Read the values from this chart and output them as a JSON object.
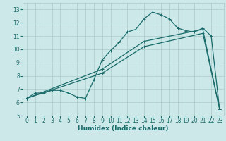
{
  "bg_color": "#cce8e8",
  "grid_color": "#aacccc",
  "line_color": "#1a6b6b",
  "xlabel": "Humidex (Indice chaleur)",
  "xlim": [
    -0.5,
    23.5
  ],
  "ylim": [
    5,
    13.5
  ],
  "yticks": [
    5,
    6,
    7,
    8,
    9,
    10,
    11,
    12,
    13
  ],
  "xticks": [
    0,
    1,
    2,
    3,
    4,
    5,
    6,
    7,
    8,
    9,
    10,
    11,
    12,
    13,
    14,
    15,
    16,
    17,
    18,
    19,
    20,
    21,
    22,
    23
  ],
  "line1_x": [
    0,
    1,
    2,
    3,
    4,
    5,
    6,
    7,
    8,
    9,
    10,
    11,
    12,
    13,
    14,
    15,
    16,
    17,
    18,
    19,
    20,
    21,
    22,
    23
  ],
  "line1_y": [
    6.3,
    6.7,
    6.7,
    6.9,
    6.9,
    6.7,
    6.4,
    6.3,
    7.7,
    9.2,
    9.9,
    10.5,
    11.3,
    11.5,
    12.3,
    12.8,
    12.6,
    12.3,
    11.6,
    11.4,
    11.3,
    11.6,
    11.0,
    5.5
  ],
  "line2_x": [
    0,
    9,
    14,
    21,
    23
  ],
  "line2_y": [
    6.3,
    8.5,
    10.6,
    11.5,
    5.5
  ],
  "line3_x": [
    0,
    9,
    14,
    21,
    23
  ],
  "line3_y": [
    6.3,
    8.2,
    10.2,
    11.2,
    5.5
  ],
  "marker": "+",
  "markersize": 3.5,
  "linewidth": 0.9,
  "tick_fontsize": 5.5,
  "xlabel_fontsize": 6.5
}
